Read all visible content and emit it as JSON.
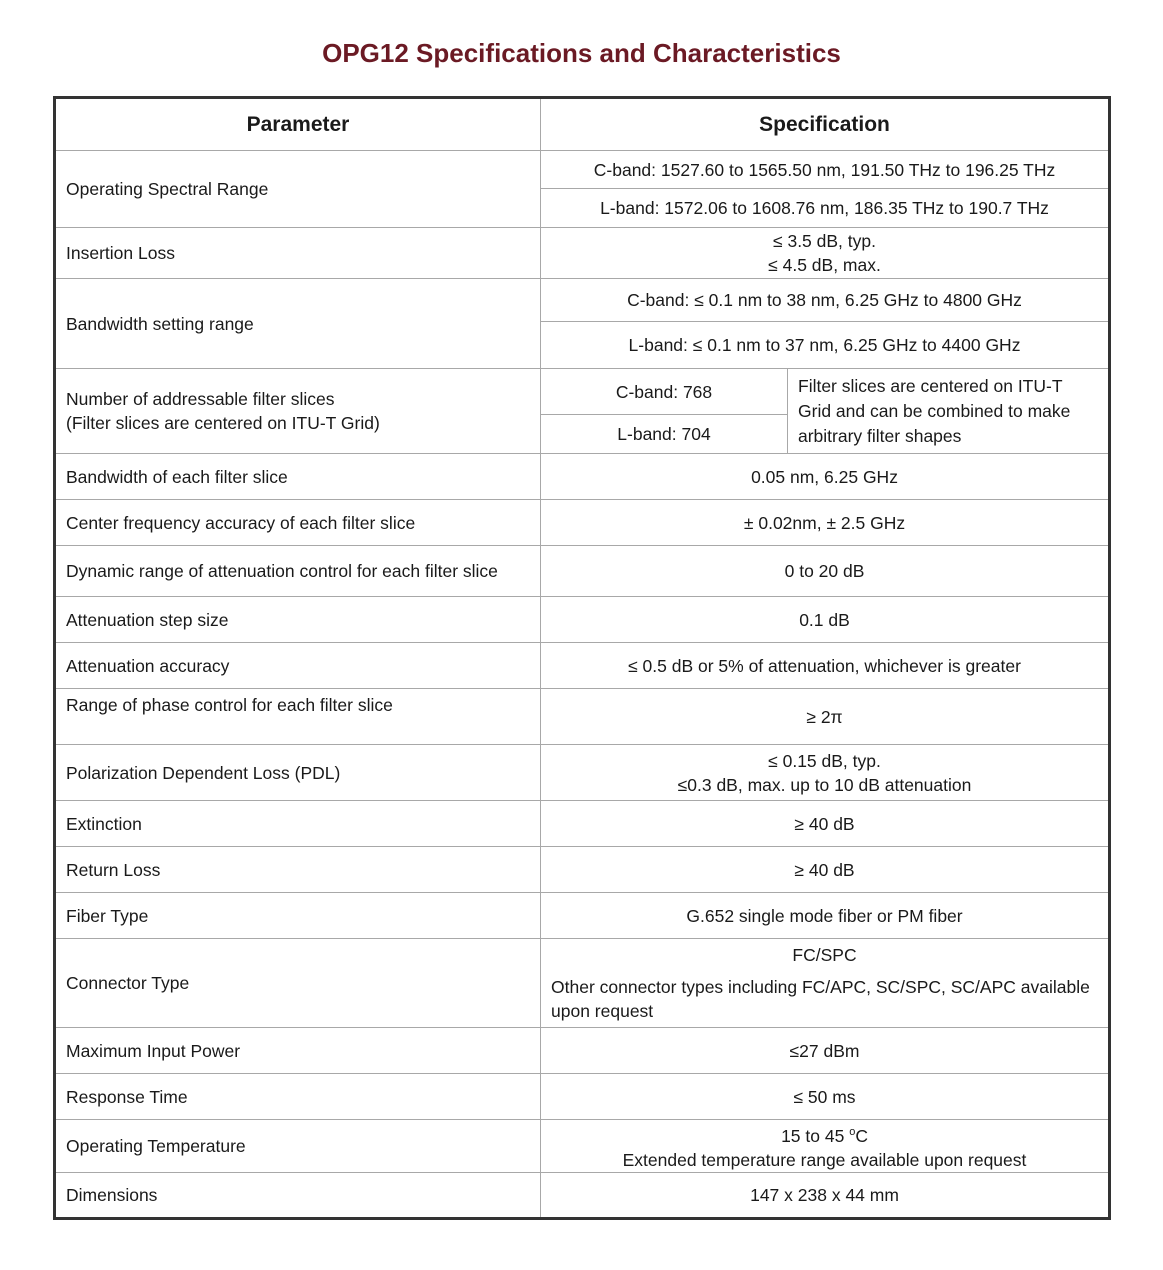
{
  "title": "OPG12 Specifications and Characteristics",
  "headers": {
    "parameter": "Parameter",
    "specification": "Specification"
  },
  "rows": {
    "spectral": {
      "param": "Operating Spectral Range",
      "c": "C-band: 1527.60 to 1565.50 nm, 191.50 THz to 196.25 THz",
      "l": "L-band:  1572.06 to 1608.76 nm, 186.35 THz to 190.7 THz"
    },
    "insertion": {
      "param": "Insertion Loss",
      "line1": "≤ 3.5 dB, typ.",
      "line2": "≤ 4.5 dB, max."
    },
    "bwrange": {
      "param": "Bandwidth setting range",
      "c": "C-band: ≤ 0.1 nm to 38 nm, 6.25 GHz to 4800 GHz",
      "l": "L-band:  ≤ 0.1 nm to 37 nm, 6.25 GHz to 4400 GHz"
    },
    "slices": {
      "param1": "Number of addressable filter slices",
      "param2": "(Filter slices are centered on ITU-T Grid)",
      "c": "C-band: 768",
      "l": "L-band: 704",
      "note": "Filter slices are centered on ITU-T Grid and can be combined to make arbitrary filter shapes"
    },
    "bweach": {
      "param": "Bandwidth of each filter slice",
      "spec": "0.05 nm, 6.25 GHz"
    },
    "center": {
      "param": "Center frequency accuracy of each filter slice",
      "spec": "± 0.02nm, ± 2.5 GHz"
    },
    "dynamic": {
      "param": "Dynamic range of attenuation control for each filter slice",
      "spec": "0 to 20 dB"
    },
    "step": {
      "param": "Attenuation step size",
      "spec": "0.1 dB"
    },
    "accuracy": {
      "param": "Attenuation accuracy",
      "spec": "≤ 0.5 dB or 5% of attenuation, whichever is greater"
    },
    "phase": {
      "param": "Range of phase control for each filter slice",
      "spec": "≥ 2π"
    },
    "pdl": {
      "param": "Polarization Dependent Loss (PDL)",
      "line1": "≤ 0.15 dB, typ.",
      "line2": "≤0.3 dB, max. up to 10 dB attenuation"
    },
    "extinction": {
      "param": "Extinction",
      "spec": "≥ 40 dB"
    },
    "return": {
      "param": "Return Loss",
      "spec": "≥ 40 dB"
    },
    "fiber": {
      "param": "Fiber Type",
      "spec": "G.652 single mode fiber or PM fiber"
    },
    "connector": {
      "param": "Connector Type",
      "line1": "FC/SPC",
      "line2": "Other connector types including FC/APC, SC/SPC, SC/APC available upon request"
    },
    "power": {
      "param": "Maximum Input Power",
      "spec": "≤27 dBm"
    },
    "response": {
      "param": "Response Time",
      "spec": "≤ 50 ms"
    },
    "temp": {
      "param": "Operating Temperature",
      "line1": "15 to 45 ",
      "deg": "o",
      "unit": "C",
      "line2": "Extended temperature range available upon request"
    },
    "dim": {
      "param": "Dimensions",
      "spec": "147 x 238 x 44 mm"
    }
  }
}
